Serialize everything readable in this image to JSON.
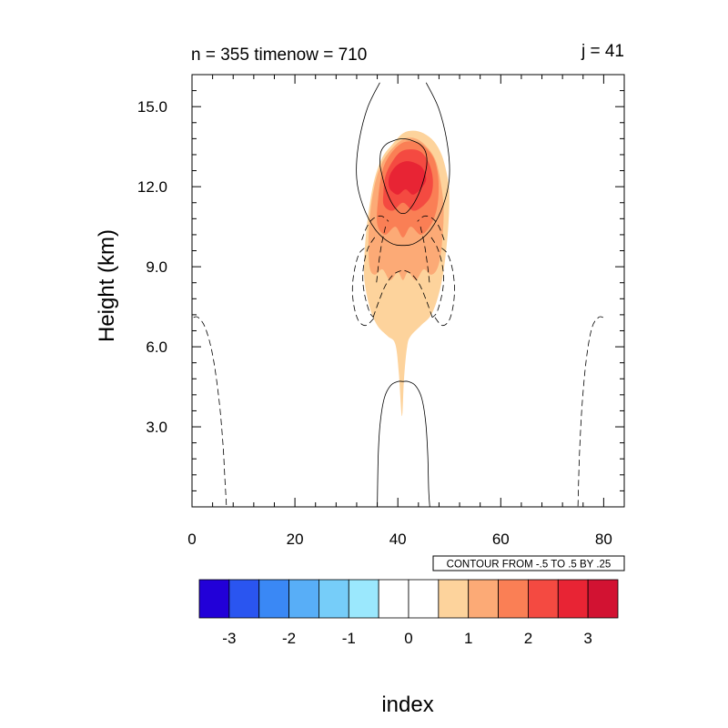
{
  "chart_data": {
    "type": "heatmap",
    "left_title": "n = 355 timenow = 710",
    "right_title": "j = 41",
    "xlabel": "index",
    "ylabel": "Height (km)",
    "xlim": [
      0,
      84
    ],
    "ylim": [
      0,
      16.2
    ],
    "x_ticks": [
      0,
      20,
      40,
      60,
      80
    ],
    "y_ticks": [
      3.0,
      6.0,
      9.0,
      12.0,
      15.0
    ],
    "y_tick_labels": [
      "3.0",
      "6.0",
      "9.0",
      "12.0",
      "15.0"
    ],
    "info_label": "CONTOUR FROM -.5 TO .5 BY .25",
    "colorbar": {
      "colors": [
        "#2200d8",
        "#2a55f0",
        "#3a88f5",
        "#58aef7",
        "#76cdf9",
        "#9be8fd",
        "#ffffff",
        "#ffffff",
        "#fdd39c",
        "#fcaa76",
        "#fa7f55",
        "#f44a41",
        "#e82434",
        "#d21232"
      ],
      "tick_values": [
        -3,
        -2,
        -1,
        0,
        1,
        2,
        3
      ],
      "tick_labels": [
        "-3",
        "-2",
        "-1",
        "0",
        "1",
        "2",
        "3"
      ],
      "range": [
        -3.5,
        3.5
      ]
    },
    "filled_levels": [
      {
        "value": 1,
        "color": "#fdd39c",
        "x": [
          33.5,
          34.5,
          36,
          38,
          39.5,
          40.2,
          40.8,
          41.2,
          41.8,
          42.5,
          44.5,
          46.5,
          48,
          49,
          49.8,
          50,
          49.5,
          48.5,
          47,
          45,
          43,
          41,
          39,
          37,
          35.5,
          34.5,
          33.8,
          33.5,
          33.5
        ],
        "y": [
          8.5,
          7.5,
          6.8,
          6.4,
          6.1,
          5.0,
          3.4,
          4.8,
          6.0,
          6.4,
          6.8,
          7.2,
          8.0,
          9.0,
          10.5,
          11.8,
          12.5,
          13.2,
          13.7,
          14.0,
          14.1,
          14.0,
          13.6,
          13.1,
          12.3,
          11.3,
          10.2,
          9.3,
          8.5
        ]
      },
      {
        "value": 1.5,
        "color": "#fcaa76",
        "x": [
          34.5,
          35.5,
          37,
          38.5,
          40,
          41,
          42,
          43.5,
          45,
          46.5,
          47.8,
          48.6,
          48.9,
          48.3,
          47.3,
          45.6,
          43.5,
          41.3,
          39.2,
          37.2,
          35.8,
          34.8,
          34.3,
          34.5
        ],
        "y": [
          9.0,
          8.7,
          8.9,
          8.5,
          8.8,
          8.5,
          8.8,
          8.5,
          8.9,
          8.7,
          9.0,
          9.9,
          11.2,
          12.2,
          13.0,
          13.5,
          13.8,
          13.8,
          13.5,
          13.0,
          12.3,
          11.3,
          10.1,
          9.0
        ]
      },
      {
        "value": 2,
        "color": "#fa7f55",
        "x": [
          36,
          37.5,
          39.5,
          41,
          42.5,
          44.5,
          46.5,
          47.7,
          47.9,
          47.3,
          46.2,
          44.5,
          42.5,
          40.5,
          38.5,
          37,
          36.2,
          36
        ],
        "y": [
          10.6,
          10.2,
          10.5,
          10.1,
          10.5,
          10.2,
          10.6,
          11.3,
          12.2,
          12.9,
          13.3,
          13.6,
          13.7,
          13.6,
          13.2,
          12.6,
          11.6,
          10.6
        ]
      },
      {
        "value": 2.5,
        "color": "#f44a41",
        "x": [
          37.3,
          39,
          41,
          43,
          45,
          46.5,
          46.8,
          46,
          44.5,
          42.5,
          40.5,
          38.8,
          37.6,
          37.2,
          37.3
        ],
        "y": [
          11.3,
          11.1,
          11.4,
          11.1,
          11.3,
          11.7,
          12.3,
          12.9,
          13.3,
          13.4,
          13.3,
          12.9,
          12.4,
          11.8,
          11.3
        ]
      },
      {
        "value": 3,
        "color": "#e82434",
        "x": [
          38.5,
          40,
          41.5,
          43,
          44.8,
          45.5,
          44.8,
          43.2,
          41.5,
          39.8,
          38.6,
          38.2,
          38.5
        ],
        "y": [
          11.9,
          11.7,
          11.9,
          11.7,
          12.0,
          12.3,
          12.7,
          12.9,
          12.95,
          12.8,
          12.5,
          12.2,
          11.9
        ]
      }
    ],
    "contours_solid": [
      {
        "x": [
          36,
          36.2,
          36.6,
          37.4,
          38.6,
          40,
          41,
          42,
          43.4,
          44.6,
          45.4,
          45.8,
          46,
          46.2
        ],
        "y": [
          0,
          2.0,
          3.2,
          4.1,
          4.55,
          4.7,
          4.7,
          4.7,
          4.55,
          4.1,
          3.2,
          2.0,
          0.6,
          0
        ]
      },
      {
        "x": [
          36.5,
          34,
          32.3,
          32.0,
          33.2,
          35.6,
          38.5,
          41,
          43.5,
          46.4,
          48.8,
          50,
          49.7,
          48,
          45.5
        ],
        "y": [
          15.9,
          14.9,
          13.5,
          12.3,
          11.3,
          10.4,
          9.9,
          9.8,
          9.9,
          10.4,
          11.3,
          12.3,
          13.5,
          14.9,
          15.9
        ]
      },
      {
        "x": [
          36.5,
          37.5,
          38.8,
          40.2,
          41,
          41.8,
          43.2,
          44.6,
          45.6,
          45.4,
          44.2,
          42.4,
          41,
          39.6,
          37.8,
          36.7,
          36.5
        ],
        "y": [
          12.8,
          12.0,
          11.4,
          11.05,
          11.0,
          11.05,
          11.4,
          12.0,
          12.8,
          13.3,
          13.6,
          13.75,
          13.8,
          13.75,
          13.6,
          13.3,
          12.8
        ]
      }
    ],
    "contours_dashed": [
      {
        "x": [
          0.3,
          1.2,
          2.6,
          4.0,
          5.2,
          6.0,
          6.4,
          6.7
        ],
        "y": [
          7.1,
          7.1,
          6.7,
          5.7,
          4.1,
          2.4,
          1.0,
          0
        ]
      },
      {
        "x": [
          79.9,
          79.0,
          77.7,
          76.6,
          75.8,
          75.3,
          75.0
        ],
        "y": [
          7.1,
          7.1,
          6.7,
          5.5,
          3.8,
          2.0,
          0
        ]
      },
      {
        "x": [
          33.5,
          32.5,
          31.7,
          31.2,
          31.4,
          32.3,
          33.8,
          35.5
        ],
        "y": [
          9.7,
          9.5,
          9.0,
          8.3,
          7.6,
          7.0,
          6.8,
          7.1
        ]
      },
      {
        "x": [
          48.5,
          49.6,
          50.5,
          51,
          50.8,
          50,
          48.6,
          47.2
        ],
        "y": [
          9.7,
          9.5,
          9.0,
          8.3,
          7.6,
          7.0,
          6.8,
          7.1
        ]
      },
      {
        "x": [
          35.5,
          34.2,
          33.4,
          33.2,
          33.6,
          34.5,
          35.3
        ],
        "y": [
          10.1,
          9.7,
          9.1,
          8.5,
          7.9,
          7.3,
          7.1
        ]
      },
      {
        "x": [
          46.5,
          47.7,
          48.6,
          48.9,
          48.5,
          47.6,
          46.7
        ],
        "y": [
          10.1,
          9.7,
          9.1,
          8.5,
          7.9,
          7.3,
          7.1
        ]
      },
      {
        "x": [
          35.2,
          36.3,
          37.6,
          39.1,
          40.6,
          41.4,
          42.8,
          44.3,
          45.6,
          46.7
        ],
        "y": [
          7.1,
          7.7,
          8.3,
          8.7,
          8.85,
          8.85,
          8.7,
          8.3,
          7.7,
          7.1
        ]
      },
      {
        "x": [
          33.0,
          34.0,
          35.2,
          36.8,
          38.2
        ],
        "y": [
          10.0,
          10.5,
          10.8,
          10.9,
          10.7
        ]
      },
      {
        "x": [
          49.0,
          48.0,
          46.8,
          45.2,
          43.8
        ],
        "y": [
          10.0,
          10.5,
          10.8,
          10.9,
          10.7
        ]
      },
      {
        "x": [
          37.6,
          36.8,
          36.2,
          35.8
        ],
        "y": [
          10.5,
          9.8,
          9.0,
          8.3
        ]
      },
      {
        "x": [
          44.4,
          45.2,
          45.8,
          46.2
        ],
        "y": [
          10.5,
          9.8,
          9.0,
          8.3
        ]
      }
    ],
    "grid": false,
    "legend": "colorbar-bottom"
  }
}
